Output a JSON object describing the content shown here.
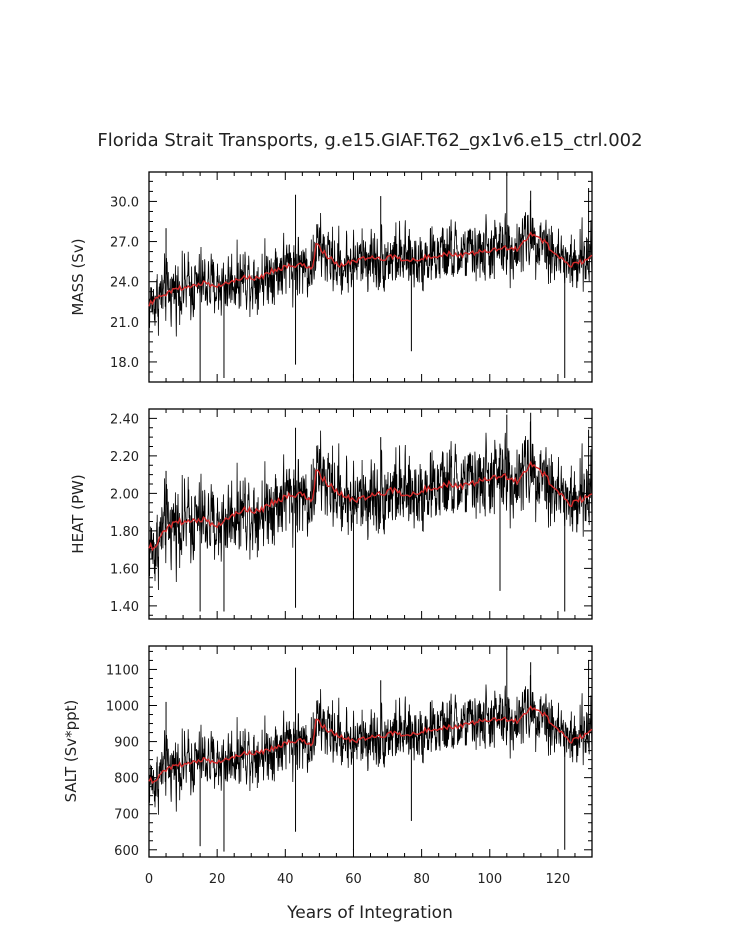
{
  "chart_data": {
    "title": "Florida Strait Transports, g.e15.GIAF.T62_gx1v6.e15_ctrl.002",
    "xlabel": "Years of Integration",
    "xlim": [
      0,
      130
    ],
    "xticks": [
      0,
      20,
      40,
      60,
      80,
      100,
      120
    ],
    "x_tick_labels": [
      "0",
      "20",
      "40",
      "60",
      "80",
      "100",
      "120"
    ],
    "series_colors": {
      "monthly": "#000000",
      "annual_mean": "#d42a2a"
    },
    "panels": [
      {
        "type": "line",
        "name": "mass",
        "ylabel": "MASS (Sv)",
        "ylim": [
          16.5,
          32.2
        ],
        "yticks": [
          18.0,
          21.0,
          24.0,
          27.0,
          30.0
        ],
        "y_tick_labels": [
          "18.0",
          "21.0",
          "24.0",
          "27.0",
          "30.0"
        ],
        "annual_mean": {
          "x": [
            0,
            4,
            8,
            12,
            16,
            20,
            24,
            28,
            32,
            36,
            40,
            44,
            48,
            49,
            52,
            56,
            60,
            64,
            68,
            72,
            76,
            80,
            84,
            88,
            92,
            96,
            100,
            104,
            108,
            112,
            116,
            120,
            124,
            128,
            130
          ],
          "y": [
            22.3,
            23.0,
            23.5,
            23.6,
            23.9,
            23.6,
            24.0,
            24.4,
            24.2,
            24.8,
            25.1,
            25.3,
            25.0,
            26.8,
            26.0,
            25.2,
            25.5,
            25.8,
            25.7,
            25.9,
            25.5,
            25.8,
            25.9,
            26.1,
            26.0,
            26.2,
            26.3,
            26.6,
            26.4,
            27.6,
            27.0,
            25.8,
            25.2,
            25.6,
            26.0
          ]
        },
        "noise": {
          "amplitude": 1.45,
          "spikes_down": [
            [
              15,
              16.8
            ],
            [
              22,
              16.8
            ],
            [
              43,
              17.8
            ],
            [
              60,
              16.8
            ],
            [
              77,
              18.8
            ],
            [
              122,
              16.8
            ]
          ],
          "spikes_up": [
            [
              5,
              28.0
            ],
            [
              43,
              30.5
            ],
            [
              68,
              30.4
            ],
            [
              105,
              32.1
            ],
            [
              112,
              30.8
            ],
            [
              129,
              31.0
            ]
          ]
        }
      },
      {
        "type": "line",
        "name": "heat",
        "ylabel": "HEAT (PW)",
        "ylim": [
          1.33,
          2.45
        ],
        "yticks": [
          1.4,
          1.6,
          1.8,
          2.0,
          2.2,
          2.4
        ],
        "y_tick_labels": [
          "1.40",
          "1.60",
          "1.80",
          "2.00",
          "2.20",
          "2.40"
        ],
        "annual_mean": {
          "x": [
            0,
            2,
            4,
            8,
            12,
            16,
            20,
            24,
            28,
            32,
            36,
            40,
            44,
            48,
            49,
            52,
            56,
            60,
            64,
            68,
            72,
            76,
            80,
            84,
            88,
            92,
            96,
            100,
            104,
            108,
            112,
            116,
            120,
            124,
            128,
            130
          ],
          "y": [
            1.72,
            1.7,
            1.8,
            1.85,
            1.85,
            1.86,
            1.82,
            1.88,
            1.92,
            1.9,
            1.95,
            1.98,
            2.0,
            1.96,
            2.12,
            2.06,
            2.0,
            1.96,
            1.98,
            2.0,
            2.02,
            1.98,
            2.02,
            2.03,
            2.05,
            2.04,
            2.06,
            2.08,
            2.1,
            2.06,
            2.16,
            2.1,
            2.0,
            1.94,
            1.98,
            2.0
          ]
        },
        "noise": {
          "amplitude": 0.13,
          "spikes_down": [
            [
              15,
              1.37
            ],
            [
              22,
              1.37
            ],
            [
              43,
              1.39
            ],
            [
              60,
              1.33
            ],
            [
              103,
              1.48
            ],
            [
              122,
              1.37
            ]
          ],
          "spikes_up": [
            [
              5,
              2.12
            ],
            [
              43,
              2.35
            ],
            [
              68,
              2.3
            ],
            [
              105,
              2.42
            ],
            [
              112,
              2.43
            ],
            [
              129,
              2.34
            ]
          ]
        }
      },
      {
        "type": "line",
        "name": "salt",
        "ylabel": "SALT (Sv*ppt)",
        "ylim": [
          580,
          1165
        ],
        "yticks": [
          600,
          700,
          800,
          900,
          1000,
          1100
        ],
        "y_tick_labels": [
          "600",
          "700",
          "800",
          "900",
          "1000",
          "1100"
        ],
        "annual_mean": {
          "x": [
            0,
            2,
            4,
            8,
            12,
            16,
            20,
            24,
            28,
            32,
            36,
            40,
            44,
            48,
            49,
            52,
            56,
            60,
            64,
            68,
            72,
            76,
            80,
            84,
            88,
            92,
            96,
            100,
            104,
            108,
            112,
            116,
            120,
            124,
            128,
            130
          ],
          "y": [
            795,
            785,
            820,
            835,
            840,
            850,
            840,
            855,
            870,
            868,
            880,
            895,
            905,
            890,
            960,
            935,
            915,
            900,
            910,
            915,
            925,
            915,
            930,
            935,
            940,
            945,
            955,
            960,
            965,
            955,
            995,
            975,
            930,
            900,
            920,
            935
          ]
        },
        "noise": {
          "amplitude": 52,
          "spikes_down": [
            [
              15,
              610
            ],
            [
              22,
              595
            ],
            [
              43,
              650
            ],
            [
              60,
              600
            ],
            [
              77,
              680
            ],
            [
              122,
              600
            ]
          ],
          "spikes_up": [
            [
              5,
              1010
            ],
            [
              43,
              1105
            ],
            [
              68,
              1070
            ],
            [
              105,
              1160
            ],
            [
              112,
              1120
            ],
            [
              129,
              1125
            ]
          ]
        }
      }
    ]
  }
}
